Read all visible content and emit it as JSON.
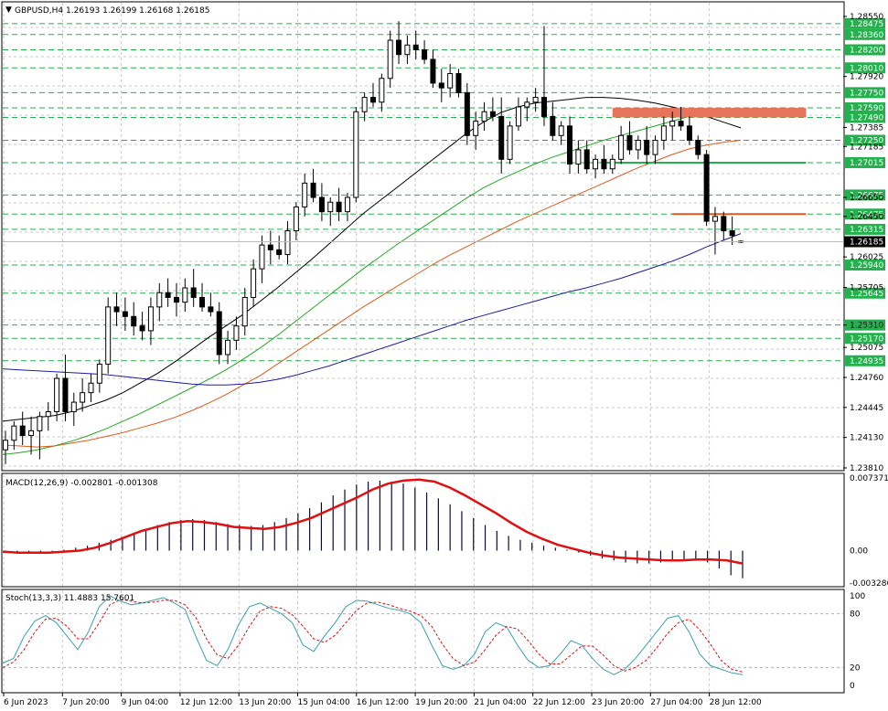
{
  "chart_data": {
    "type": "candlestick",
    "title": "GBPUSD,H4  1.26193 1.26199 1.26168 1.26185",
    "title_marker": "▼",
    "price": {
      "ylim": [
        1.2381,
        1.2855
      ],
      "tick_labels": [
        "1.28550",
        "1.27920",
        "1.27385",
        "1.27185",
        "1.26650",
        "1.26450",
        "1.26025",
        "1.25705",
        "1.25310",
        "1.25075",
        "1.24760",
        "1.24445",
        "1.24130",
        "1.23810"
      ],
      "levels": [
        {
          "value": 1.28475,
          "label": "1.28475"
        },
        {
          "value": 1.2836,
          "label": "1.28360"
        },
        {
          "value": 1.282,
          "label": "1.28200"
        },
        {
          "value": 1.2801,
          "label": "1.28010"
        },
        {
          "value": 1.2775,
          "label": "1.27750"
        },
        {
          "value": 1.2759,
          "label": "1.27590"
        },
        {
          "value": 1.2749,
          "label": "1.27490"
        },
        {
          "value": 1.2725,
          "label": "1.27250"
        },
        {
          "value": 1.27015,
          "label": "1.27015"
        },
        {
          "value": 1.26675,
          "label": "1.26675"
        },
        {
          "value": 1.26475,
          "label": "1.26475"
        },
        {
          "value": 1.26315,
          "label": "1.26315"
        },
        {
          "value": 1.2594,
          "label": "1.25940"
        },
        {
          "value": 1.25645,
          "label": "1.25645"
        },
        {
          "value": 1.2531,
          "label": "1.25310"
        },
        {
          "value": 1.2517,
          "label": "1.25170"
        },
        {
          "value": 1.24935,
          "label": "1.24935"
        }
      ],
      "current_price": {
        "value": 1.26185,
        "label": "1.26185"
      },
      "level_color": "#22b14c",
      "candles": [
        [
          1.24,
          1.242,
          1.2385,
          1.241
        ],
        [
          1.241,
          1.243,
          1.24,
          1.2425
        ],
        [
          1.2425,
          1.244,
          1.2405,
          1.2415
        ],
        [
          1.2415,
          1.2435,
          1.2395,
          1.242
        ],
        [
          1.242,
          1.244,
          1.239,
          1.2435
        ],
        [
          1.2435,
          1.245,
          1.242,
          1.244
        ],
        [
          1.244,
          1.248,
          1.243,
          1.2475
        ],
        [
          1.2475,
          1.25,
          1.243,
          1.244
        ],
        [
          1.244,
          1.246,
          1.2425,
          1.245
        ],
        [
          1.245,
          1.2475,
          1.244,
          1.246
        ],
        [
          1.246,
          1.248,
          1.245,
          1.247
        ],
        [
          1.247,
          1.2495,
          1.246,
          1.249
        ],
        [
          1.249,
          1.256,
          1.248,
          1.255
        ],
        [
          1.255,
          1.2565,
          1.253,
          1.2545
        ],
        [
          1.2545,
          1.256,
          1.2525,
          1.254
        ],
        [
          1.254,
          1.2555,
          1.252,
          1.253
        ],
        [
          1.253,
          1.2545,
          1.2515,
          1.2525
        ],
        [
          1.2525,
          1.256,
          1.251,
          1.255
        ],
        [
          1.255,
          1.2575,
          1.2535,
          1.2565
        ],
        [
          1.2565,
          1.258,
          1.255,
          1.256
        ],
        [
          1.256,
          1.2575,
          1.254,
          1.2555
        ],
        [
          1.2555,
          1.258,
          1.2545,
          1.257
        ],
        [
          1.257,
          1.259,
          1.255,
          1.256
        ],
        [
          1.256,
          1.2575,
          1.2545,
          1.255
        ],
        [
          1.255,
          1.2565,
          1.254,
          1.2545
        ],
        [
          1.2545,
          1.2555,
          1.249,
          1.25
        ],
        [
          1.25,
          1.2525,
          1.249,
          1.2515
        ],
        [
          1.2515,
          1.254,
          1.2505,
          1.253
        ],
        [
          1.253,
          1.257,
          1.252,
          1.256
        ],
        [
          1.256,
          1.26,
          1.255,
          1.259
        ],
        [
          1.259,
          1.2625,
          1.2575,
          1.2615
        ],
        [
          1.2615,
          1.263,
          1.2595,
          1.261
        ],
        [
          1.261,
          1.2625,
          1.26,
          1.2605
        ],
        [
          1.2605,
          1.264,
          1.2595,
          1.263
        ],
        [
          1.263,
          1.266,
          1.262,
          1.2655
        ],
        [
          1.2655,
          1.269,
          1.2645,
          1.268
        ],
        [
          1.268,
          1.2695,
          1.266,
          1.2665
        ],
        [
          1.2665,
          1.268,
          1.264,
          1.265
        ],
        [
          1.265,
          1.2665,
          1.2635,
          1.266
        ],
        [
          1.266,
          1.2675,
          1.264,
          1.265
        ],
        [
          1.265,
          1.267,
          1.264,
          1.2665
        ],
        [
          1.2665,
          1.276,
          1.266,
          1.2755
        ],
        [
          1.2755,
          1.2775,
          1.2745,
          1.277
        ],
        [
          1.277,
          1.2785,
          1.276,
          1.2765
        ],
        [
          1.2765,
          1.2795,
          1.2755,
          1.279
        ],
        [
          1.279,
          1.284,
          1.278,
          1.283
        ],
        [
          1.283,
          1.285,
          1.2805,
          1.2815
        ],
        [
          1.2815,
          1.2835,
          1.2805,
          1.2825
        ],
        [
          1.2825,
          1.284,
          1.281,
          1.282
        ],
        [
          1.282,
          1.283,
          1.2805,
          1.281
        ],
        [
          1.281,
          1.282,
          1.278,
          1.2785
        ],
        [
          1.2785,
          1.28,
          1.2765,
          1.278
        ],
        [
          1.278,
          1.2805,
          1.277,
          1.2795
        ],
        [
          1.2795,
          1.28,
          1.277,
          1.2775
        ],
        [
          1.2775,
          1.2785,
          1.272,
          1.273
        ],
        [
          1.273,
          1.2755,
          1.2715,
          1.2745
        ],
        [
          1.2745,
          1.2765,
          1.2735,
          1.2755
        ],
        [
          1.2755,
          1.277,
          1.2745,
          1.275
        ],
        [
          1.275,
          1.277,
          1.269,
          1.2705
        ],
        [
          1.2705,
          1.2745,
          1.27,
          1.274
        ],
        [
          1.274,
          1.277,
          1.2735,
          1.276
        ],
        [
          1.276,
          1.277,
          1.2745,
          1.2765
        ],
        [
          1.2765,
          1.278,
          1.2755,
          1.277
        ],
        [
          1.277,
          1.2845,
          1.274,
          1.275
        ],
        [
          1.275,
          1.2765,
          1.2725,
          1.273
        ],
        [
          1.273,
          1.2745,
          1.272,
          1.274
        ],
        [
          1.274,
          1.275,
          1.269,
          1.27
        ],
        [
          1.27,
          1.2725,
          1.269,
          1.2715
        ],
        [
          1.2715,
          1.2725,
          1.269,
          1.2695
        ],
        [
          1.2695,
          1.271,
          1.2685,
          1.2705
        ],
        [
          1.2705,
          1.272,
          1.269,
          1.2695
        ],
        [
          1.2695,
          1.271,
          1.269,
          1.2705
        ],
        [
          1.2705,
          1.274,
          1.27,
          1.273
        ],
        [
          1.273,
          1.2745,
          1.271,
          1.2715
        ],
        [
          1.2715,
          1.273,
          1.2705,
          1.2725
        ],
        [
          1.2725,
          1.274,
          1.27,
          1.271
        ],
        [
          1.271,
          1.273,
          1.27,
          1.2725
        ],
        [
          1.2725,
          1.275,
          1.2715,
          1.274
        ],
        [
          1.274,
          1.2755,
          1.2725,
          1.2745
        ],
        [
          1.2745,
          1.276,
          1.2735,
          1.274
        ],
        [
          1.274,
          1.275,
          1.272,
          1.2725
        ],
        [
          1.2725,
          1.273,
          1.2705,
          1.271
        ],
        [
          1.271,
          1.2715,
          1.2635,
          1.264
        ],
        [
          1.264,
          1.2655,
          1.2605,
          1.2645
        ],
        [
          1.2645,
          1.265,
          1.262,
          1.263
        ],
        [
          1.263,
          1.2645,
          1.2615,
          1.2625
        ],
        [
          1.2619,
          1.262,
          1.2617,
          1.2618
        ]
      ],
      "moving_averages": [
        {
          "name": "MA-short",
          "color": "#000000",
          "values": [
            1.243,
            1.2432,
            1.2434,
            1.2436,
            1.244,
            1.2446,
            1.2452,
            1.246,
            1.247,
            1.248,
            1.2492,
            1.2505,
            1.2518,
            1.253,
            1.2542,
            1.2556,
            1.257,
            1.2585,
            1.26,
            1.2616,
            1.2632,
            1.2648,
            1.2662,
            1.2676,
            1.269,
            1.2704,
            1.2718,
            1.2732,
            1.2744,
            1.2754,
            1.276,
            1.2764,
            1.2766,
            1.2768,
            1.277,
            1.277,
            1.2769,
            1.2767,
            1.2764,
            1.276,
            1.2756,
            1.275,
            1.2744,
            1.2738
          ]
        },
        {
          "name": "MA-mid",
          "color": "#22a822",
          "values": [
            1.2395,
            1.2397,
            1.24,
            1.2404,
            1.2409,
            1.2415,
            1.2422,
            1.243,
            1.2438,
            1.2447,
            1.2456,
            1.2465,
            1.2474,
            1.2484,
            1.2495,
            1.2507,
            1.252,
            1.2534,
            1.2548,
            1.2562,
            1.2576,
            1.259,
            1.2603,
            1.2616,
            1.2628,
            1.264,
            1.2652,
            1.2664,
            1.2675,
            1.2684,
            1.2692,
            1.27,
            1.2707,
            1.2713,
            1.2719,
            1.2725,
            1.273,
            1.2735,
            1.274,
            1.2745,
            1.275,
            1.2752,
            1.2752,
            1.275
          ]
        },
        {
          "name": "MA-long",
          "color": "#e05a1c",
          "values": [
            1.2405,
            1.2404,
            1.2403,
            1.2404,
            1.2407,
            1.241,
            1.2414,
            1.2418,
            1.2423,
            1.2428,
            1.2434,
            1.2441,
            1.2449,
            1.2458,
            1.2468,
            1.2478,
            1.249,
            1.2502,
            1.2514,
            1.2526,
            1.2538,
            1.255,
            1.2561,
            1.2572,
            1.2583,
            1.2594,
            1.2604,
            1.2613,
            1.2622,
            1.2631,
            1.264,
            1.2648,
            1.2656,
            1.2664,
            1.2672,
            1.268,
            1.2688,
            1.2696,
            1.2703,
            1.271,
            1.2716,
            1.272,
            1.2723,
            1.2725
          ]
        },
        {
          "name": "MA-slow",
          "color": "#1c1ca0",
          "values": [
            1.2485,
            1.2484,
            1.2483,
            1.2482,
            1.2481,
            1.248,
            1.2479,
            1.2477,
            1.2475,
            1.2473,
            1.2471,
            1.2469,
            1.2468,
            1.2468,
            1.2469,
            1.2471,
            1.2474,
            1.2478,
            1.2483,
            1.2488,
            1.2494,
            1.25,
            1.2506,
            1.2512,
            1.2518,
            1.2524,
            1.253,
            1.2536,
            1.2541,
            1.2546,
            1.2551,
            1.2556,
            1.2561,
            1.2566,
            1.257,
            1.2575,
            1.258,
            1.2586,
            1.2592,
            1.2598,
            1.2605,
            1.2613,
            1.262,
            1.2627
          ]
        }
      ],
      "zones": [
        {
          "type": "box",
          "from": 1.2749,
          "to": 1.2759,
          "start_index": 71,
          "end_index": 90,
          "color": "#e8735a"
        },
        {
          "type": "line",
          "value": 1.27015,
          "start_index": 70,
          "end_index": 90,
          "color": "#22b14c"
        },
        {
          "type": "line",
          "value": 1.26475,
          "start_index": 78,
          "end_index": 90,
          "color": "#e05a1c"
        }
      ]
    },
    "macd": {
      "label": "MACD(12,26,9) -0.002801 -0.001308",
      "tick_labels": [
        "0.007371",
        "0.00",
        "-0.003286"
      ],
      "ylim": [
        -0.003286,
        0.007371
      ],
      "histogram": [
        -0.0002,
        -0.0003,
        -0.0003,
        -0.0002,
        -0.0001,
        0.0001,
        0.0003,
        0.0005,
        0.0008,
        0.0011,
        0.0014,
        0.0017,
        0.0022,
        0.0026,
        0.0029,
        0.0031,
        0.0032,
        0.0031,
        0.0029,
        0.0027,
        0.0026,
        0.0025,
        0.0026,
        0.0029,
        0.0033,
        0.0038,
        0.0043,
        0.0049,
        0.0056,
        0.0062,
        0.0067,
        0.007,
        0.0071,
        0.007,
        0.0068,
        0.0064,
        0.0059,
        0.0053,
        0.0047,
        0.004,
        0.0033,
        0.0026,
        0.002,
        0.0015,
        0.0011,
        0.0008,
        0.0005,
        0.0003,
        0.0001,
        -0.0002,
        -0.0005,
        -0.0008,
        -0.001,
        -0.0012,
        -0.0013,
        -0.0013,
        -0.0012,
        -0.0011,
        -0.001,
        -0.001,
        -0.0012,
        -0.0018,
        -0.0025,
        -0.0028
      ],
      "signal": [
        -0.0001,
        -0.0002,
        -0.0002,
        -0.0002,
        -0.0001,
        0.0,
        0.0003,
        0.0008,
        0.0014,
        0.002,
        0.0024,
        0.0028,
        0.003,
        0.0029,
        0.0027,
        0.0024,
        0.0023,
        0.0022,
        0.0024,
        0.0028,
        0.0033,
        0.004,
        0.0047,
        0.0054,
        0.0062,
        0.0068,
        0.0071,
        0.0072,
        0.007,
        0.0064,
        0.0056,
        0.0047,
        0.0038,
        0.0028,
        0.0019,
        0.0012,
        0.0006,
        0.0002,
        -0.0002,
        -0.0005,
        -0.0007,
        -0.0008,
        -0.0009,
        -0.001,
        -0.001,
        -0.0009,
        -0.0009,
        -0.001,
        -0.0013
      ],
      "colors": {
        "histogram": "#0a0a3c",
        "signal": "#e01010"
      }
    },
    "stoch": {
      "label": "Stoch(13,3,3) 11.4883 15.7601",
      "tick_labels": [
        "100",
        "80",
        "20",
        "0"
      ],
      "levels": [
        80,
        20
      ],
      "main": [
        25,
        30,
        55,
        72,
        78,
        70,
        55,
        40,
        60,
        88,
        100,
        94,
        90,
        92,
        95,
        98,
        92,
        85,
        55,
        28,
        22,
        40,
        68,
        88,
        92,
        86,
        80,
        70,
        45,
        38,
        55,
        70,
        88,
        95,
        94,
        90,
        86,
        84,
        80,
        70,
        45,
        22,
        18,
        22,
        35,
        60,
        70,
        65,
        45,
        28,
        20,
        22,
        35,
        50,
        45,
        30,
        18,
        12,
        18,
        30,
        45,
        60,
        75,
        78,
        60,
        35,
        22,
        18,
        14,
        12
      ],
      "signal": [
        20,
        26,
        40,
        60,
        74,
        75,
        66,
        52,
        52,
        70,
        90,
        96,
        94,
        92,
        93,
        95,
        95,
        90,
        76,
        52,
        34,
        30,
        45,
        66,
        83,
        88,
        86,
        79,
        66,
        52,
        48,
        56,
        70,
        84,
        92,
        93,
        90,
        86,
        83,
        78,
        66,
        46,
        30,
        22,
        26,
        40,
        56,
        66,
        63,
        50,
        35,
        24,
        24,
        34,
        44,
        44,
        34,
        22,
        16,
        20,
        28,
        42,
        58,
        70,
        74,
        62,
        46,
        28,
        18,
        15
      ],
      "colors": {
        "main": "#3aa0b0",
        "signal": "#e01010"
      }
    },
    "x_tick_labels": [
      "6 Jun 2023",
      "7 Jun 20:00",
      "9 Jun 04:00",
      "12 Jun 12:00",
      "13 Jun 20:00",
      "15 Jun 04:00",
      "16 Jun 12:00",
      "19 Jun 20:00",
      "21 Jun 04:00",
      "22 Jun 12:00",
      "23 Jun 20:00",
      "27 Jun 04:00",
      "28 Jun 12:00"
    ]
  }
}
